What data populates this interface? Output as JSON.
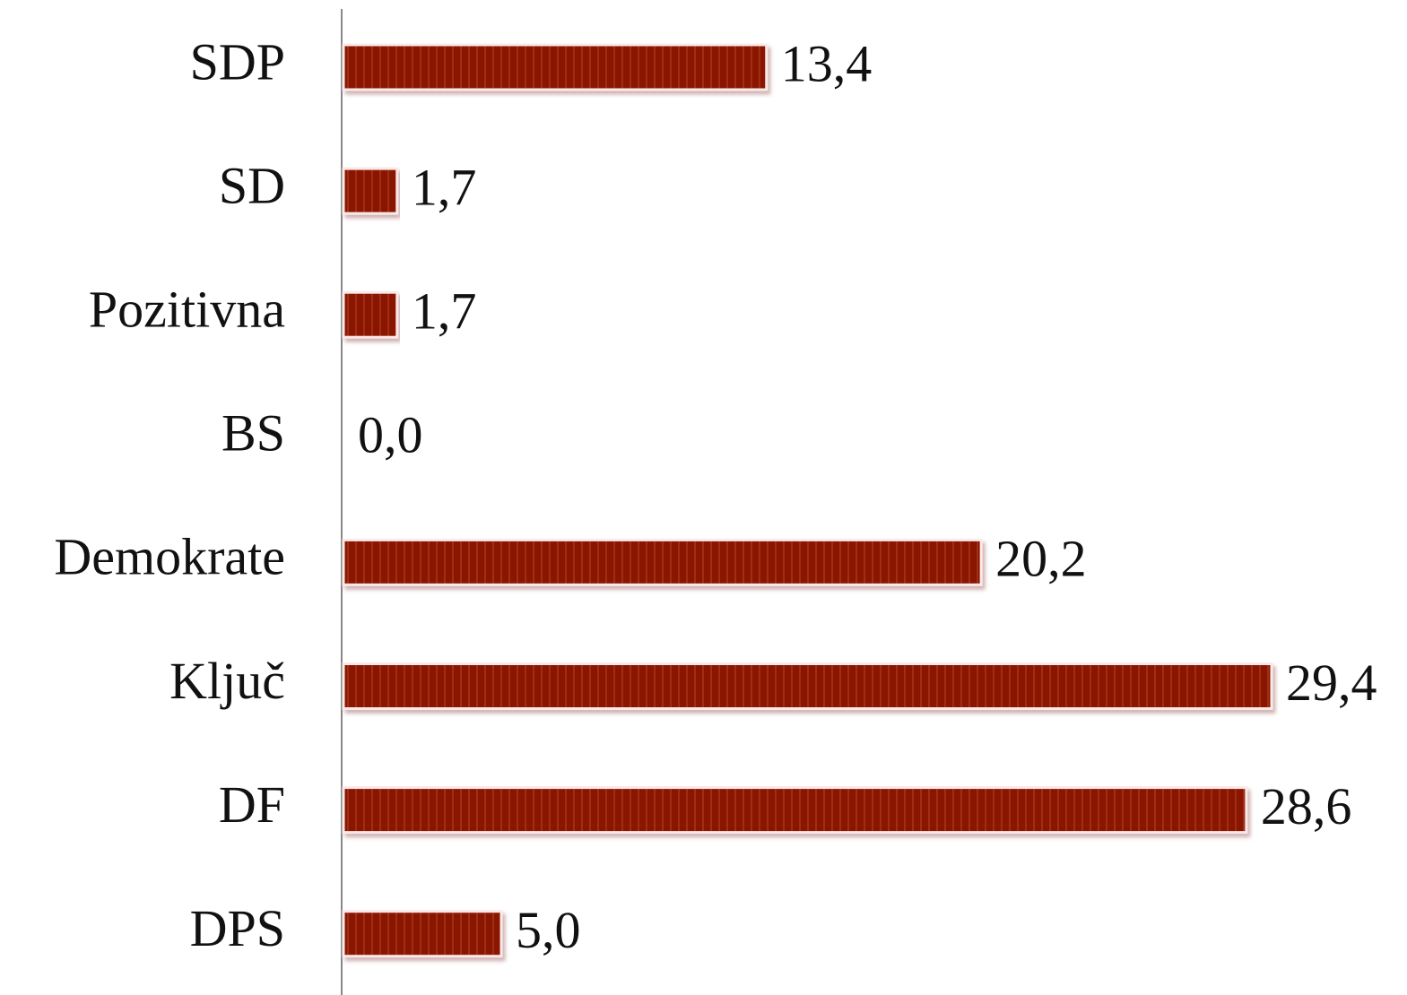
{
  "chart_data": {
    "type": "bar",
    "orientation": "horizontal",
    "categories": [
      "SDP",
      "SD",
      "Pozitivna",
      "BS",
      "Demokrate",
      "Ključ",
      "DF",
      "DPS"
    ],
    "values": [
      13.4,
      1.7,
      1.7,
      0.0,
      20.2,
      29.4,
      28.6,
      5.0
    ],
    "value_labels": [
      "13,4",
      "1,7",
      "1,7",
      "0,0",
      "20,2",
      "29,4",
      "28,6",
      "5,0"
    ],
    "color": "#8a1400"
  }
}
